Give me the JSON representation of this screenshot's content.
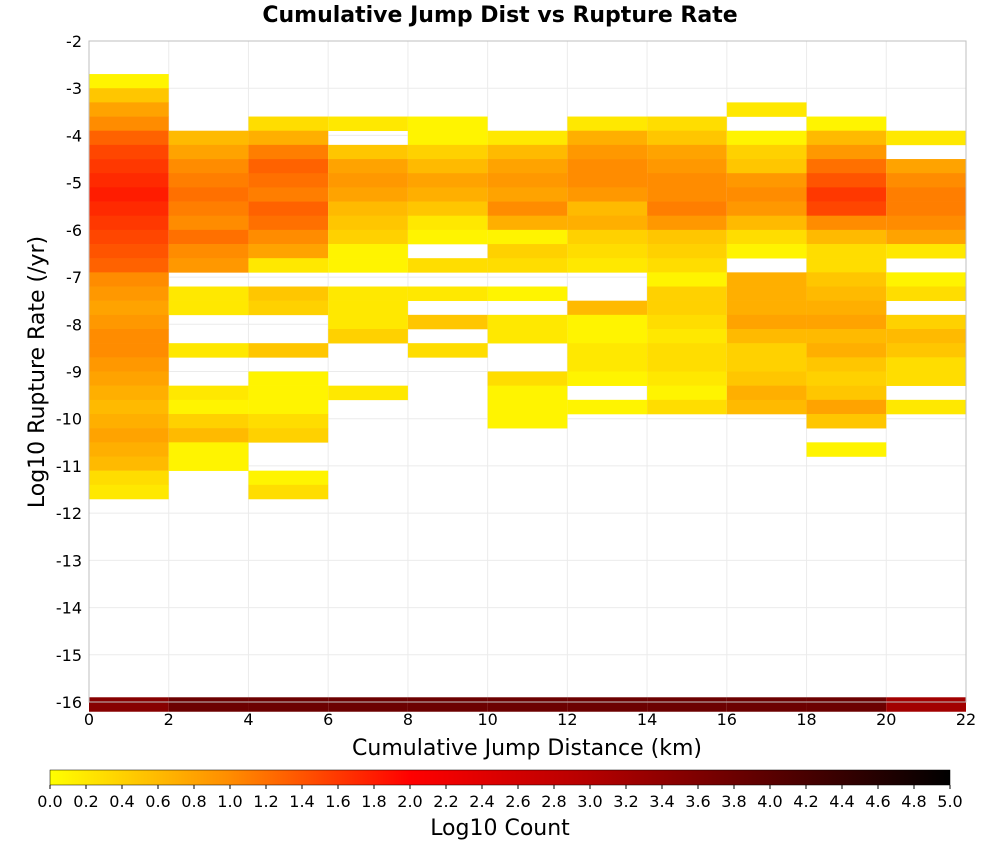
{
  "chart_data": {
    "type": "heatmap",
    "title": "Cumulative Jump Dist vs Rupture Rate",
    "xlabel": "Cumulative Jump Distance (km)",
    "ylabel": "Log10 Rupture Rate (/yr)",
    "xlim": [
      0,
      22
    ],
    "ylim": [
      -16,
      -2
    ],
    "x_ticks": [
      0,
      2,
      4,
      6,
      8,
      10,
      12,
      14,
      16,
      18,
      20,
      22
    ],
    "y_ticks": [
      -2,
      -3,
      -4,
      -5,
      -6,
      -7,
      -8,
      -9,
      -10,
      -11,
      -12,
      -13,
      -14,
      -15,
      -16
    ],
    "x_bin_width": 2,
    "y_bin_height": 0.3,
    "grid": true,
    "colorbar": {
      "label": "Log10 Count",
      "range": [
        0.0,
        5.0
      ],
      "ticks": [
        "0.0",
        "0.2",
        "0.4",
        "0.6",
        "0.8",
        "1.0",
        "1.2",
        "1.4",
        "1.6",
        "1.8",
        "2.0",
        "2.2",
        "2.4",
        "2.6",
        "2.8",
        "3.0",
        "3.2",
        "3.4",
        "3.6",
        "3.8",
        "4.0",
        "4.2",
        "4.4",
        "4.6",
        "4.8",
        "5.0"
      ],
      "colors": [
        "#ffff00",
        "#ff8c00",
        "#ff0000",
        "#b40000",
        "#000000"
      ]
    },
    "columns": [
      {
        "x": 0,
        "y_start": -2.7,
        "values": [
          0.1,
          0.5,
          0.8,
          1.0,
          1.3,
          1.5,
          1.6,
          1.7,
          1.8,
          1.7,
          1.6,
          1.5,
          1.4,
          1.3,
          1.0,
          0.9,
          0.8,
          0.9,
          1.0,
          1.0,
          0.9,
          0.8,
          0.7,
          0.6,
          0.7,
          0.8,
          0.7,
          0.6,
          0.3,
          0.2
        ]
      },
      {
        "x": 2,
        "y_start": -3.9,
        "values": [
          0.6,
          0.8,
          1.0,
          1.1,
          1.2,
          1.1,
          1.0,
          1.2,
          1.0,
          0.9,
          null,
          0.2,
          0.2,
          null,
          null,
          0.2,
          null,
          null,
          0.2,
          0.1,
          0.4,
          0.6,
          0.1,
          0.1
        ]
      },
      {
        "x": 4,
        "y_start": -3.6,
        "values": [
          0.3,
          0.7,
          1.1,
          1.3,
          1.2,
          1.1,
          1.3,
          1.2,
          1.0,
          0.8,
          0.2,
          null,
          0.5,
          0.4,
          null,
          null,
          0.5,
          null,
          0.1,
          0.1,
          0.1,
          0.3,
          0.4,
          null,
          null,
          0.1,
          0.3
        ]
      },
      {
        "x": 6,
        "y_start": -3.6,
        "values": [
          0.2,
          null,
          0.5,
          0.8,
          0.9,
          0.8,
          0.6,
          0.5,
          0.4,
          0.1,
          0.1,
          null,
          0.2,
          0.2,
          0.2,
          0.4,
          null,
          null,
          null,
          0.2
        ]
      },
      {
        "x": 8,
        "y_start": -3.6,
        "values": [
          0.1,
          0.1,
          0.4,
          0.6,
          0.8,
          0.7,
          0.5,
          0.2,
          0.1,
          null,
          0.3,
          null,
          0.2,
          null,
          0.5,
          null,
          0.3
        ]
      },
      {
        "x": 10,
        "y_start": -3.9,
        "values": [
          0.2,
          0.6,
          0.8,
          0.9,
          0.8,
          1.0,
          0.7,
          0.1,
          0.4,
          0.3,
          null,
          0.1,
          null,
          0.2,
          0.2,
          null,
          null,
          0.3,
          0.1,
          0.1,
          0.1
        ]
      },
      {
        "x": 12,
        "y_start": -3.6,
        "values": [
          0.2,
          0.7,
          0.9,
          1.0,
          1.0,
          0.9,
          0.6,
          0.7,
          0.4,
          0.3,
          0.2,
          null,
          null,
          0.6,
          0.1,
          0.1,
          0.2,
          0.2,
          0.1,
          null,
          0.1
        ]
      },
      {
        "x": 14,
        "y_start": -3.6,
        "values": [
          0.3,
          0.5,
          0.8,
          0.9,
          1.0,
          1.0,
          1.1,
          0.9,
          0.5,
          0.4,
          0.3,
          0.1,
          0.4,
          0.4,
          0.3,
          0.2,
          0.3,
          0.3,
          0.2,
          0.1,
          0.3
        ]
      },
      {
        "x": 16,
        "y_start": -3.3,
        "values": [
          0.2,
          null,
          0.1,
          0.4,
          0.5,
          0.9,
          1.0,
          0.9,
          0.6,
          0.3,
          0.1,
          null,
          0.7,
          0.7,
          0.7,
          0.8,
          0.6,
          0.4,
          0.4,
          0.5,
          0.7,
          0.6
        ]
      },
      {
        "x": 18,
        "y_start": -3.6,
        "values": [
          0.1,
          0.6,
          0.9,
          1.2,
          1.4,
          1.6,
          1.5,
          1.0,
          0.6,
          0.3,
          0.3,
          0.5,
          0.6,
          0.7,
          0.8,
          0.6,
          0.7,
          0.5,
          0.4,
          0.5,
          0.8,
          0.5,
          null,
          0.1
        ]
      },
      {
        "x": 20,
        "y_start": -3.9,
        "values": [
          0.2,
          null,
          0.8,
          1.0,
          1.1,
          1.1,
          1.0,
          0.8,
          0.2,
          null,
          0.1,
          0.3,
          null,
          0.4,
          0.6,
          0.5,
          0.3,
          0.3,
          null,
          0.2
        ]
      },
      {
        "x": 0,
        "y_start": -15.9,
        "values": [
          3.5
        ]
      },
      {
        "x": 2,
        "y_start": -15.9,
        "values": [
          3.8
        ]
      },
      {
        "x": 4,
        "y_start": -15.9,
        "values": [
          3.8
        ]
      },
      {
        "x": 6,
        "y_start": -15.9,
        "values": [
          3.8
        ]
      },
      {
        "x": 8,
        "y_start": -15.9,
        "values": [
          3.8
        ]
      },
      {
        "x": 10,
        "y_start": -15.9,
        "values": [
          3.8
        ]
      },
      {
        "x": 12,
        "y_start": -15.9,
        "values": [
          3.8
        ]
      },
      {
        "x": 14,
        "y_start": -15.9,
        "values": [
          3.8
        ]
      },
      {
        "x": 16,
        "y_start": -15.9,
        "values": [
          3.8
        ]
      },
      {
        "x": 18,
        "y_start": -15.9,
        "values": [
          3.8
        ]
      },
      {
        "x": 20,
        "y_start": -15.9,
        "values": [
          3.2
        ]
      }
    ]
  }
}
